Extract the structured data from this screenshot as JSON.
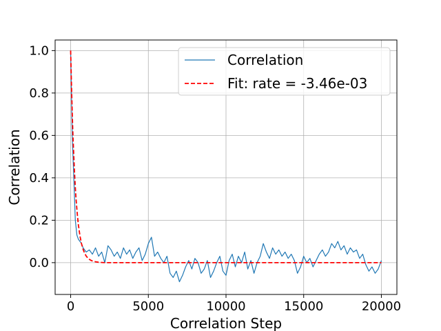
{
  "chart_data": {
    "type": "line",
    "title": "",
    "xlabel": "Correlation Step",
    "ylabel": "Correlation",
    "xlim": [
      -1000,
      21000
    ],
    "ylim": [
      -0.15,
      1.05
    ],
    "xticks": [
      0,
      5000,
      10000,
      15000,
      20000
    ],
    "xtick_labels": [
      "0",
      "5000",
      "10000",
      "15000",
      "20000"
    ],
    "yticks": [
      0.0,
      0.2,
      0.4,
      0.6,
      0.8,
      1.0
    ],
    "ytick_labels": [
      "0.0",
      "0.2",
      "0.4",
      "0.6",
      "0.8",
      "1.0"
    ],
    "grid": true,
    "legend_position": "upper-right",
    "series": [
      {
        "name": "Correlation",
        "style": "solid",
        "color": "#1f77b4",
        "x": [
          0,
          100,
          200,
          300,
          400,
          500,
          600,
          700,
          800,
          1000,
          1200,
          1400,
          1600,
          1800,
          2000,
          2200,
          2400,
          2600,
          2800,
          3000,
          3200,
          3400,
          3600,
          3800,
          4000,
          4200,
          4400,
          4600,
          4800,
          5000,
          5200,
          5400,
          5600,
          5800,
          6000,
          6200,
          6400,
          6600,
          6800,
          7000,
          7200,
          7400,
          7600,
          7800,
          8000,
          8200,
          8400,
          8600,
          8800,
          9000,
          9200,
          9400,
          9600,
          9800,
          10000,
          10200,
          10400,
          10600,
          10800,
          11000,
          11200,
          11400,
          11600,
          11800,
          12000,
          12200,
          12400,
          12600,
          12800,
          13000,
          13200,
          13400,
          13600,
          13800,
          14000,
          14200,
          14400,
          14600,
          14800,
          15000,
          15200,
          15400,
          15600,
          15800,
          16000,
          16200,
          16400,
          16600,
          16800,
          17000,
          17200,
          17400,
          17600,
          17800,
          18000,
          18200,
          18400,
          18600,
          18800,
          19000,
          19200,
          19400,
          19600,
          19800,
          20000
        ],
        "y": [
          1.0,
          0.6,
          0.4,
          0.2,
          0.13,
          0.11,
          0.1,
          0.09,
          0.07,
          0.05,
          0.06,
          0.04,
          0.07,
          0.03,
          0.05,
          0.0,
          0.08,
          0.06,
          0.03,
          0.05,
          0.02,
          0.07,
          0.04,
          0.06,
          0.02,
          0.05,
          0.07,
          0.01,
          0.04,
          0.09,
          0.12,
          0.03,
          0.05,
          0.02,
          0.0,
          0.03,
          -0.05,
          -0.07,
          -0.04,
          -0.09,
          -0.06,
          -0.02,
          0.01,
          -0.03,
          0.02,
          0.0,
          -0.05,
          -0.03,
          0.01,
          -0.07,
          -0.04,
          0.0,
          0.03,
          -0.04,
          -0.06,
          0.01,
          0.04,
          -0.02,
          0.03,
          0.0,
          0.05,
          -0.03,
          0.01,
          -0.05,
          0.0,
          0.03,
          0.09,
          0.05,
          0.02,
          0.07,
          0.04,
          0.06,
          0.03,
          0.05,
          0.02,
          0.04,
          0.01,
          -0.05,
          -0.02,
          0.03,
          0.0,
          0.02,
          -0.02,
          0.01,
          0.04,
          0.06,
          0.03,
          0.05,
          0.09,
          0.07,
          0.1,
          0.06,
          0.08,
          0.04,
          0.07,
          0.05,
          0.06,
          0.02,
          0.04,
          -0.01,
          -0.04,
          -0.02,
          -0.05,
          -0.03,
          0.01
        ]
      },
      {
        "name": "Fit: rate = -3.46e-03",
        "style": "dashed",
        "color": "#ff0000",
        "rate": -0.00346,
        "x": [
          0,
          50,
          100,
          150,
          200,
          250,
          300,
          350,
          400,
          450,
          500,
          600,
          700,
          800,
          900,
          1000,
          1100,
          1200,
          1300,
          1400,
          1500,
          1600,
          1800,
          2000,
          2200,
          2500,
          3000,
          4000,
          5000,
          6000,
          8000,
          10000,
          12000,
          14000,
          16000,
          18000,
          20000
        ],
        "y": [
          1.0,
          0.841,
          0.707,
          0.595,
          0.501,
          0.421,
          0.354,
          0.298,
          0.251,
          0.211,
          0.177,
          0.125,
          0.089,
          0.063,
          0.044,
          0.031,
          0.022,
          0.016,
          0.011,
          0.008,
          0.006,
          0.004,
          0.002,
          0.001,
          0.0,
          0.0,
          0.0,
          0.0,
          0.0,
          0.0,
          0.0,
          0.0,
          0.0,
          0.0,
          0.0,
          0.0,
          0.0
        ]
      }
    ]
  }
}
